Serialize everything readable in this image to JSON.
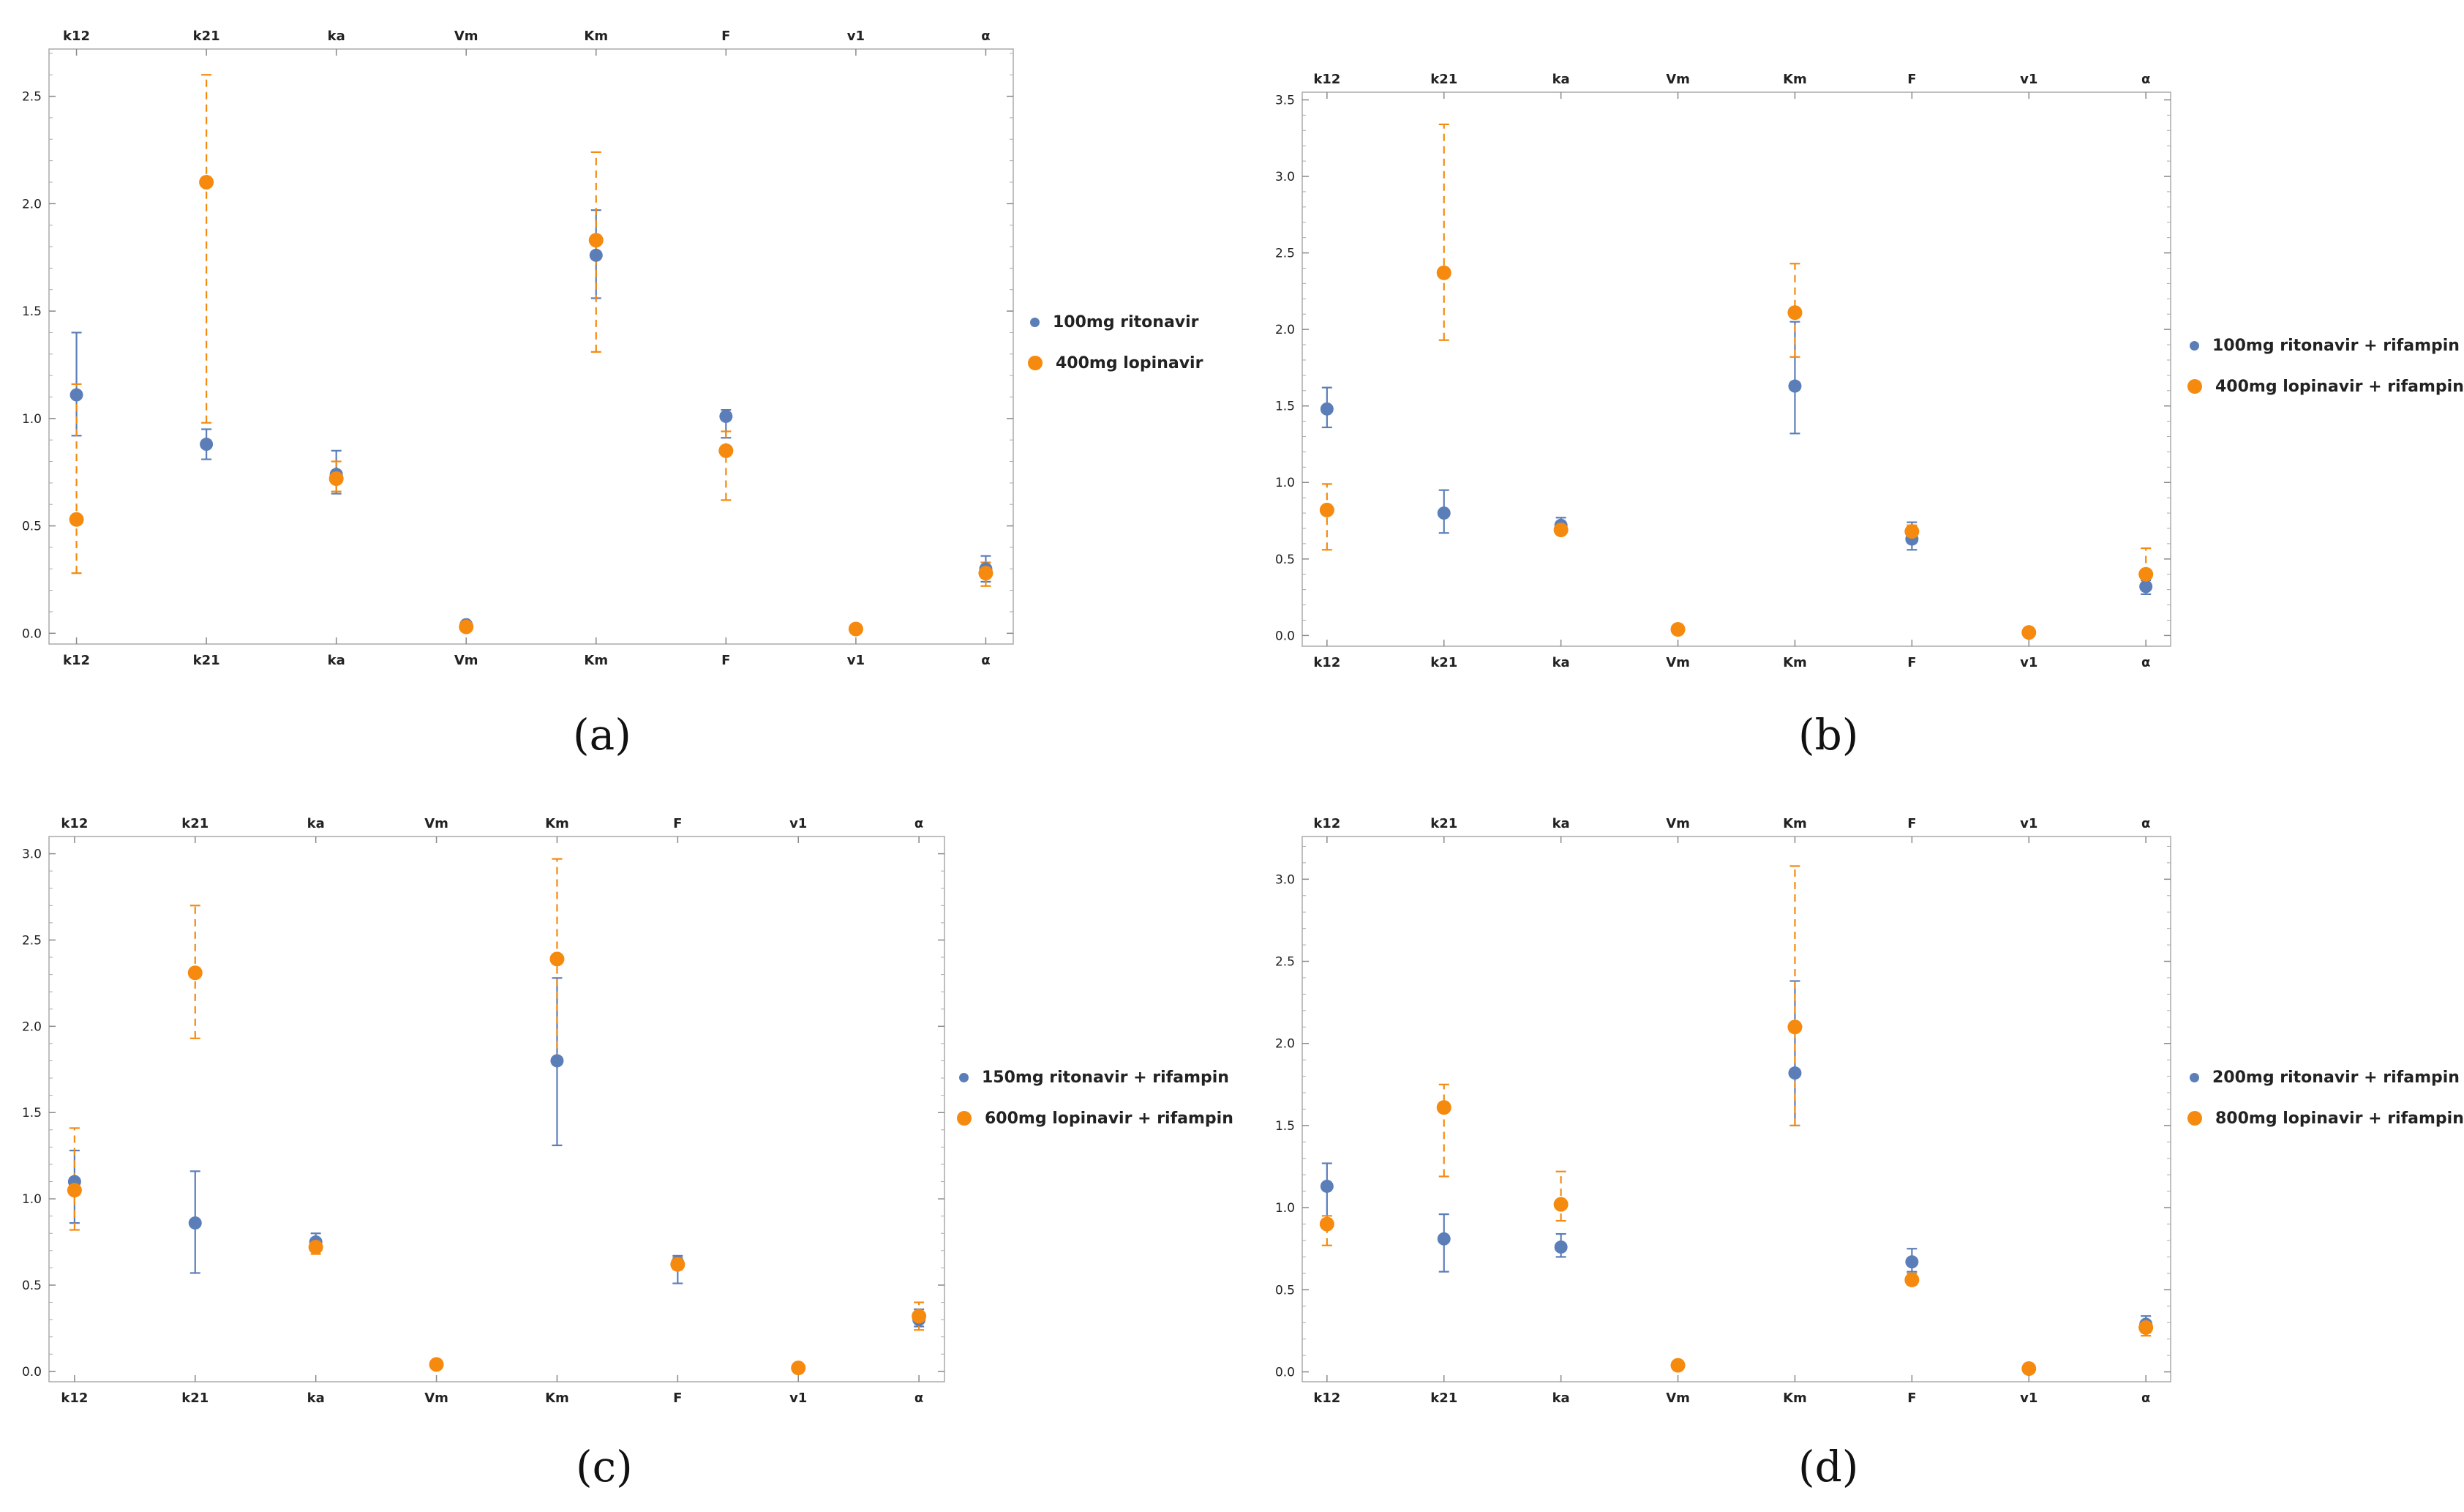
{
  "colors": {
    "series1": "#5b7eb8",
    "series2": "#f58a0f",
    "axis": "#aaaaaa",
    "text": "#222222"
  },
  "chart_data": [
    {
      "type": "scatter",
      "caption": "(a)",
      "categories": [
        "k12",
        "k21",
        "ka",
        "Vm",
        "Km",
        "F",
        "v1",
        "α"
      ],
      "ylim": [
        -0.05,
        2.72
      ],
      "yticks": [
        0.0,
        0.5,
        1.0,
        1.5,
        2.0,
        2.5
      ],
      "ytick_labels": [
        "0.0",
        "0.5",
        "1.0",
        "1.5",
        "2.0",
        "2.5"
      ],
      "series": [
        {
          "name": "100mg ritonavir",
          "values": [
            1.11,
            0.88,
            0.74,
            0.04,
            1.76,
            1.01,
            0.02,
            0.3
          ],
          "lower": [
            0.92,
            0.81,
            0.65,
            null,
            1.56,
            0.91,
            null,
            0.24
          ],
          "upper": [
            1.4,
            0.95,
            0.85,
            null,
            1.97,
            1.04,
            null,
            0.36
          ]
        },
        {
          "name": "400mg lopinavir",
          "values": [
            0.53,
            2.1,
            0.72,
            0.03,
            1.83,
            0.85,
            0.02,
            0.28
          ],
          "lower": [
            0.28,
            0.98,
            0.66,
            null,
            1.31,
            0.62,
            null,
            0.22
          ],
          "upper": [
            1.16,
            2.6,
            0.8,
            null,
            2.24,
            0.94,
            null,
            0.33
          ]
        }
      ]
    },
    {
      "type": "scatter",
      "caption": "(b)",
      "categories": [
        "k12",
        "k21",
        "ka",
        "Vm",
        "Km",
        "F",
        "v1",
        "α"
      ],
      "ylim": [
        -0.07,
        3.55
      ],
      "yticks": [
        0.0,
        0.5,
        1.0,
        1.5,
        2.0,
        2.5,
        3.0,
        3.5
      ],
      "ytick_labels": [
        "0.0",
        "0.5",
        "1.0",
        "1.5",
        "2.0",
        "2.5",
        "3.0",
        "3.5"
      ],
      "series": [
        {
          "name": "100mg ritonavir + rifampin",
          "values": [
            1.48,
            0.8,
            0.72,
            0.04,
            1.63,
            0.63,
            0.02,
            0.32
          ],
          "lower": [
            1.36,
            0.67,
            0.67,
            null,
            1.32,
            0.56,
            null,
            0.27
          ],
          "upper": [
            1.62,
            0.95,
            0.77,
            null,
            2.05,
            0.74,
            null,
            0.36
          ]
        },
        {
          "name": "400mg lopinavir + rifampin",
          "values": [
            0.82,
            2.37,
            0.69,
            0.04,
            2.11,
            0.68,
            0.02,
            0.4
          ],
          "lower": [
            0.56,
            1.93,
            0.66,
            null,
            1.82,
            0.63,
            null,
            0.31
          ],
          "upper": [
            0.99,
            3.34,
            0.73,
            null,
            2.43,
            0.72,
            null,
            0.57
          ]
        }
      ]
    },
    {
      "type": "scatter",
      "caption": "(c)",
      "categories": [
        "k12",
        "k21",
        "ka",
        "Vm",
        "Km",
        "F",
        "v1",
        "α"
      ],
      "ylim": [
        -0.06,
        3.1
      ],
      "yticks": [
        0.0,
        0.5,
        1.0,
        1.5,
        2.0,
        2.5,
        3.0
      ],
      "ytick_labels": [
        "0.0",
        "0.5",
        "1.0",
        "1.5",
        "2.0",
        "2.5",
        "3.0"
      ],
      "series": [
        {
          "name": "150mg ritonavir + rifampin",
          "values": [
            1.1,
            0.86,
            0.75,
            0.04,
            1.8,
            0.63,
            0.02,
            0.3
          ],
          "lower": [
            0.86,
            0.57,
            0.7,
            null,
            1.31,
            0.51,
            null,
            0.26
          ],
          "upper": [
            1.28,
            1.16,
            0.8,
            null,
            2.28,
            0.67,
            null,
            0.36
          ]
        },
        {
          "name": "600mg lopinavir + rifampin",
          "values": [
            1.05,
            2.31,
            0.72,
            0.04,
            2.39,
            0.62,
            0.02,
            0.32
          ],
          "lower": [
            0.82,
            1.93,
            0.68,
            null,
            1.8,
            0.59,
            null,
            0.24
          ],
          "upper": [
            1.41,
            2.7,
            0.76,
            null,
            2.97,
            0.66,
            null,
            0.4
          ]
        }
      ]
    },
    {
      "type": "scatter",
      "caption": "(d)",
      "categories": [
        "k12",
        "k21",
        "ka",
        "Vm",
        "Km",
        "F",
        "v1",
        "α"
      ],
      "ylim": [
        -0.06,
        3.26
      ],
      "yticks": [
        0.0,
        0.5,
        1.0,
        1.5,
        2.0,
        2.5,
        3.0
      ],
      "ytick_labels": [
        "0.0",
        "0.5",
        "1.0",
        "1.5",
        "2.0",
        "2.5",
        "3.0"
      ],
      "series": [
        {
          "name": "200mg ritonavir + rifampin",
          "values": [
            1.13,
            0.81,
            0.76,
            0.04,
            1.82,
            0.67,
            0.02,
            0.29
          ],
          "lower": [
            0.93,
            0.61,
            0.7,
            null,
            1.5,
            0.61,
            null,
            0.24
          ],
          "upper": [
            1.27,
            0.96,
            0.84,
            null,
            2.38,
            0.75,
            null,
            0.34
          ]
        },
        {
          "name": "800mg lopinavir + rifampin",
          "values": [
            0.9,
            1.61,
            1.02,
            0.04,
            2.1,
            0.56,
            0.02,
            0.27
          ],
          "lower": [
            0.77,
            1.19,
            0.92,
            null,
            1.5,
            0.53,
            null,
            0.22
          ],
          "upper": [
            0.95,
            1.75,
            1.22,
            null,
            3.08,
            0.6,
            null,
            0.3
          ]
        }
      ]
    }
  ]
}
